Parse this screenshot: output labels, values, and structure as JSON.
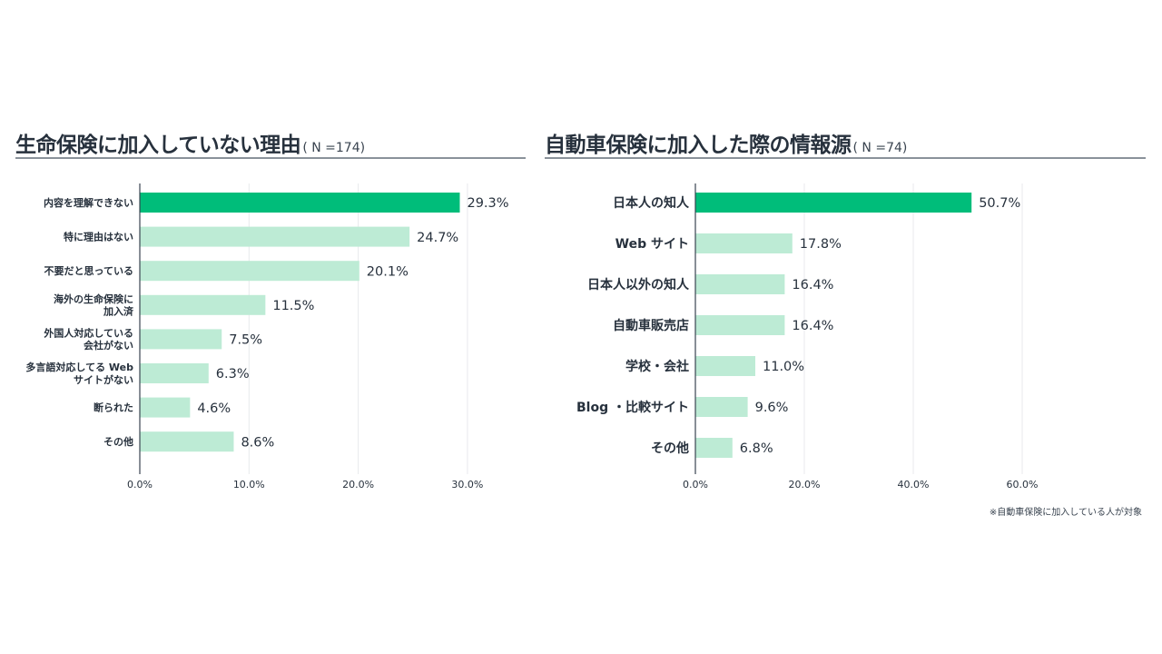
{
  "colors": {
    "highlight": "#00bd7a",
    "bar": "#bdebd5",
    "grid": "#e8eaec",
    "axis": "#3a4450",
    "text": "#27313d"
  },
  "chart_data": [
    {
      "type": "bar",
      "orientation": "horizontal",
      "title": "生命保険に加入していない理由",
      "subtitle": "( N =174)",
      "categories": [
        "内容を理解できない",
        "特に理由はない",
        "不要だと思っている",
        "海外の生命保険に 加入済",
        "外国人対応している 会社がない",
        "多言語対応してる Web サイトがない",
        "断られた",
        "その他"
      ],
      "values": [
        29.3,
        24.7,
        20.1,
        11.5,
        7.5,
        6.3,
        4.6,
        8.6
      ],
      "value_labels": [
        "29.3%",
        "24.7%",
        "20.1%",
        "11.5%",
        "7.5%",
        "6.3%",
        "4.6%",
        "8.6%"
      ],
      "xlim": [
        0,
        35
      ],
      "xticks": [
        0,
        10,
        20,
        30
      ],
      "xtick_labels": [
        "0.0%",
        "10.0%",
        "20.0%",
        "30.0%"
      ],
      "highlight_index": 0,
      "grid": true
    },
    {
      "type": "bar",
      "orientation": "horizontal",
      "title": "自動車保険に加入した際の情報源",
      "subtitle": "( N =74)",
      "categories": [
        "日本人の知人",
        "Web サイト",
        "日本人以外の知人",
        "自動車販売店",
        "学校・会社",
        "Blog ・比較サイト",
        "その他"
      ],
      "values": [
        50.7,
        17.8,
        16.4,
        16.4,
        11.0,
        9.6,
        6.8
      ],
      "value_labels": [
        "50.7%",
        "17.8%",
        "16.4%",
        "16.4%",
        "11.0%",
        "9.6%",
        "6.8%"
      ],
      "xlim": [
        0,
        60
      ],
      "xticks": [
        0,
        20,
        40,
        60
      ],
      "xtick_labels": [
        "0.0%",
        "20.0%",
        "40.0%",
        "60.0%"
      ],
      "highlight_index": 0,
      "grid": true,
      "footnote": "※自動車保険に加入している人が対象"
    }
  ]
}
